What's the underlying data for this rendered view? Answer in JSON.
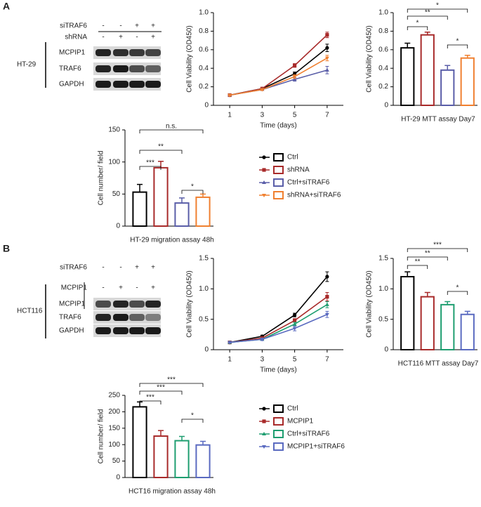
{
  "panel_labels": [
    "A",
    "B"
  ],
  "blots": [
    {
      "cell_line": "HT-29",
      "conditions": [
        {
          "label": "siTRAF6",
          "signs": [
            "-",
            "-",
            "+",
            "+"
          ]
        },
        {
          "label": "shRNA",
          "signs": [
            "-",
            "+",
            "-",
            "+"
          ]
        }
      ],
      "bands": [
        "MCPIP1",
        "TRAF6",
        "GAPDH"
      ]
    },
    {
      "cell_line": "HCT116",
      "conditions": [
        {
          "label": "siTRAF6",
          "signs": [
            "-",
            "-",
            "+",
            "+"
          ]
        },
        {
          "label": "MCPIP1",
          "signs": [
            "-",
            "+",
            "-",
            "+"
          ]
        }
      ],
      "bands": [
        "MCPIP1",
        "TRAF6",
        "GAPDH"
      ]
    }
  ],
  "chart_data": [
    {
      "type": "line",
      "xlabel": "Time (days)",
      "ylabel": "Cell Viability (OD450)",
      "x": [
        1,
        3,
        5,
        7
      ],
      "xlim": [
        0,
        8
      ],
      "xticks": [
        1,
        3,
        5,
        7
      ],
      "ylim": [
        0,
        1
      ],
      "yticks": [
        0,
        0.2,
        0.4,
        0.6,
        0.8,
        {
          "value": 1,
          "label": "1.0"
        }
      ],
      "series": [
        {
          "name": "Ctrl",
          "color": "#000000",
          "values": [
            0.11,
            0.18,
            0.34,
            0.62
          ],
          "errors": [
            0.01,
            0.01,
            0.02,
            0.04
          ]
        },
        {
          "name": "shRNA",
          "color": "#a82a2a",
          "values": [
            0.11,
            0.18,
            0.43,
            0.76
          ],
          "errors": [
            0.01,
            0.01,
            0.02,
            0.03
          ]
        },
        {
          "name": "Ctrl+siTRAF6",
          "color": "#5a5ea8",
          "values": [
            0.11,
            0.17,
            0.28,
            0.38
          ],
          "errors": [
            0.01,
            0.01,
            0.02,
            0.04
          ]
        },
        {
          "name": "shRNA+siTRAF6",
          "color": "#f08030",
          "values": [
            0.11,
            0.17,
            0.31,
            0.51
          ],
          "errors": [
            0.01,
            0.01,
            0.02,
            0.03
          ]
        }
      ]
    },
    {
      "type": "bar",
      "xlabel": "HT-29 MTT assay Day7",
      "ylabel": "Cell Viability (OD450)",
      "categories": [
        null,
        null,
        null,
        null
      ],
      "values": [
        0.62,
        0.76,
        0.38,
        0.51
      ],
      "errors": [
        0.05,
        0.03,
        0.05,
        0.03
      ],
      "colors": [
        "#000000",
        "#a82a2a",
        "#5a5ea8",
        "#f08030"
      ],
      "ylim": [
        0,
        1
      ],
      "yticks": [
        0,
        0.2,
        0.4,
        0.6,
        0.8,
        {
          "value": 1,
          "label": "1.0"
        }
      ],
      "brackets": [
        {
          "from": 0,
          "to": 3,
          "text": "*"
        },
        {
          "from": 0,
          "to": 2,
          "text": "**"
        },
        {
          "from": 0,
          "to": 1,
          "text": "*"
        },
        {
          "from": 2,
          "to": 3,
          "text": "*"
        }
      ]
    },
    {
      "type": "bar",
      "xlabel": "HT-29 migration assay 48h",
      "ylabel": "Cell number/ field",
      "categories": [
        null,
        null,
        null,
        null
      ],
      "values": [
        53,
        91,
        36,
        45
      ],
      "errors": [
        12,
        10,
        8,
        5
      ],
      "colors": [
        "#000000",
        "#a82a2a",
        "#5a5ea8",
        "#f08030"
      ],
      "ylim": [
        0,
        150
      ],
      "yticks": [
        0,
        50,
        100,
        150
      ],
      "brackets": [
        {
          "from": 0,
          "to": 3,
          "text": "n.s."
        },
        {
          "from": 0,
          "to": 2,
          "text": "**"
        },
        {
          "from": 0,
          "to": 1,
          "text": "***"
        },
        {
          "from": 2,
          "to": 3,
          "text": "*"
        }
      ]
    },
    {
      "type": "line",
      "xlabel": "Time (days)",
      "ylabel": "Cell Viability (OD450)",
      "x": [
        1,
        3,
        5,
        7
      ],
      "xlim": [
        0,
        8
      ],
      "xticks": [
        1,
        3,
        5,
        7
      ],
      "ylim": [
        0,
        1.5
      ],
      "yticks": [
        0,
        0.5,
        {
          "value": 1,
          "label": "1.0"
        },
        1.5
      ],
      "series": [
        {
          "name": "Ctrl",
          "color": "#000000",
          "values": [
            0.12,
            0.22,
            0.57,
            1.2
          ],
          "errors": [
            0.01,
            0.02,
            0.03,
            0.08
          ]
        },
        {
          "name": "MCPIP1",
          "color": "#a82a2a",
          "values": [
            0.12,
            0.19,
            0.48,
            0.87
          ],
          "errors": [
            0.01,
            0.02,
            0.03,
            0.07
          ]
        },
        {
          "name": "Ctrl+siTRAF6",
          "color": "#1e9e70",
          "values": [
            0.12,
            0.17,
            0.42,
            0.74
          ],
          "errors": [
            0.01,
            0.02,
            0.03,
            0.05
          ]
        },
        {
          "name": "MCPIP1+siTRAF6",
          "color": "#5a6ac0",
          "values": [
            0.12,
            0.17,
            0.35,
            0.58
          ],
          "errors": [
            0.01,
            0.02,
            0.04,
            0.05
          ]
        }
      ]
    },
    {
      "type": "bar",
      "xlabel": "HCT116 MTT assay Day7",
      "ylabel": "Cell Viability (OD450)",
      "categories": [
        null,
        null,
        null,
        null
      ],
      "values": [
        1.2,
        0.87,
        0.74,
        0.58
      ],
      "errors": [
        0.08,
        0.07,
        0.05,
        0.05
      ],
      "colors": [
        "#000000",
        "#a82a2a",
        "#1e9e70",
        "#5a6ac0"
      ],
      "ylim": [
        0,
        1.5
      ],
      "yticks": [
        0,
        0.5,
        {
          "value": 1,
          "label": "1.0"
        },
        1.5
      ],
      "brackets": [
        {
          "from": 0,
          "to": 3,
          "text": "***"
        },
        {
          "from": 0,
          "to": 2,
          "text": "**"
        },
        {
          "from": 0,
          "to": 1,
          "text": "**"
        },
        {
          "from": 2,
          "to": 3,
          "text": "*"
        }
      ]
    },
    {
      "type": "bar",
      "xlabel": "HCT16 migration assay 48h",
      "ylabel": "Cell number/ field",
      "categories": [
        null,
        null,
        null,
        null
      ],
      "values": [
        215,
        126,
        112,
        99
      ],
      "errors": [
        15,
        17,
        13,
        11
      ],
      "colors": [
        "#000000",
        "#a82a2a",
        "#1e9e70",
        "#5a6ac0"
      ],
      "ylim": [
        0,
        250
      ],
      "yticks": [
        0,
        50,
        100,
        150,
        200,
        250
      ],
      "brackets": [
        {
          "from": 0,
          "to": 3,
          "text": "***"
        },
        {
          "from": 0,
          "to": 2,
          "text": "***"
        },
        {
          "from": 0,
          "to": 1,
          "text": "***"
        },
        {
          "from": 2,
          "to": 3,
          "text": "*"
        }
      ]
    }
  ]
}
